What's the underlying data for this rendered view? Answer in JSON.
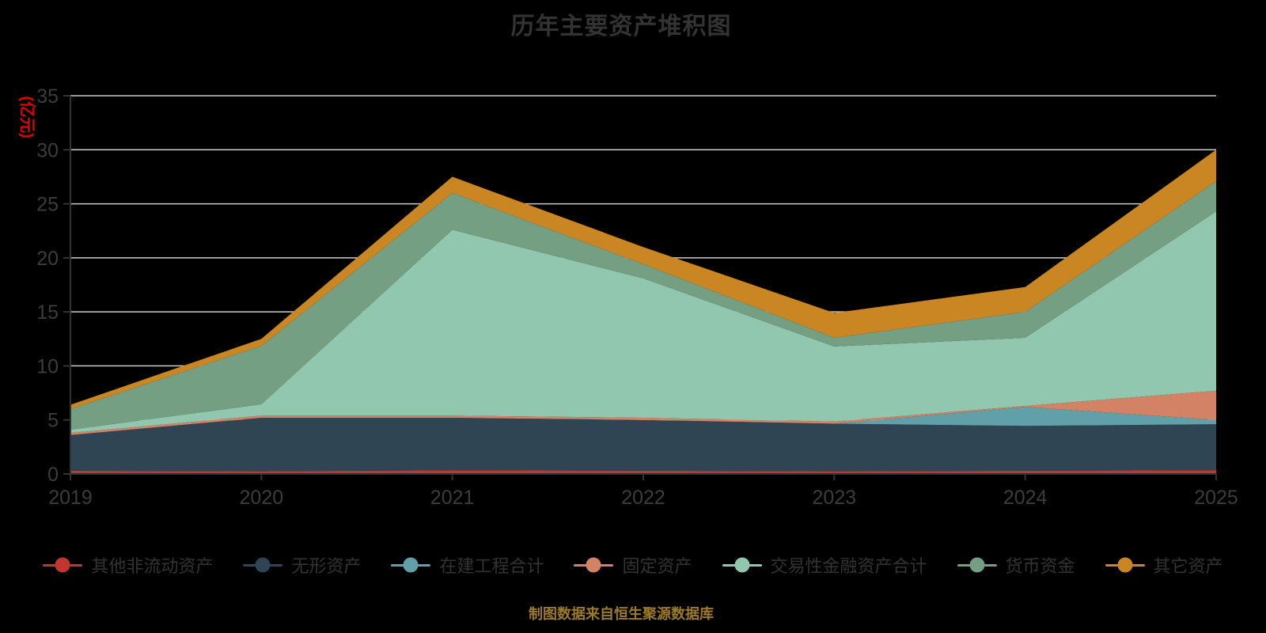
{
  "title": "历年主要资产堆积图",
  "y_axis_name": "(亿元)",
  "caption": "制图数据来自恒生聚源数据库",
  "colors": {
    "background": "#000000",
    "title_text": "#333333",
    "axis_line": "#333333",
    "axis_label": "#3c3c3c",
    "gridline": "#cccccc",
    "y_axis_name_text": "#e00000",
    "legend_text": "#333333",
    "caption_text": "#9c7a28"
  },
  "chart_data": {
    "type": "area",
    "stacked": true,
    "title": "历年主要资产堆积图",
    "ylabel": "(亿元)",
    "xlabel": "",
    "grid": "horizontal-only",
    "legend_position": "bottom",
    "ylim": [
      0,
      35
    ],
    "y_ticks": [
      0,
      5,
      10,
      15,
      20,
      25,
      30,
      35
    ],
    "categories": [
      "2019",
      "2020",
      "2021",
      "2022",
      "2023",
      "2024",
      "2025"
    ],
    "series": [
      {
        "id": "qita-feiliudong-zichan",
        "name": "其他非流动资产",
        "color": "#c23531",
        "values": [
          0.3,
          0.25,
          0.35,
          0.3,
          0.25,
          0.3,
          0.35
        ]
      },
      {
        "id": "wuxing-zichan",
        "name": "无形资产",
        "color": "#2f4554",
        "values": [
          3.3,
          4.95,
          4.85,
          4.7,
          4.4,
          4.15,
          4.25
        ]
      },
      {
        "id": "zaijian-gongcheng-heji",
        "name": "在建工程合计",
        "color": "#61a0a8",
        "values": [
          0,
          0,
          0,
          0,
          0,
          1.75,
          0.4
        ]
      },
      {
        "id": "guding-zichan",
        "name": "固定资产",
        "color": "#d48265",
        "values": [
          0.2,
          0.2,
          0.2,
          0.2,
          0.2,
          0.1,
          2.7
        ]
      },
      {
        "id": "jiaoyixing-jinrong-zichan-heji",
        "name": "交易性金融资产合计",
        "color": "#91c7ae",
        "values": [
          0.3,
          1.05,
          17.2,
          12.9,
          6.95,
          6.3,
          16.6
        ]
      },
      {
        "id": "huobi-zijin",
        "name": "货币资金",
        "color": "#749f83",
        "values": [
          1.9,
          5.4,
          3.4,
          1.3,
          0.8,
          2.4,
          2.8
        ]
      },
      {
        "id": "qita-zichan",
        "name": "其它资产",
        "color": "#ca8622",
        "values": [
          0.4,
          0.65,
          1.5,
          1.6,
          2.3,
          2.3,
          2.9
        ]
      }
    ],
    "stack_totals": [
      6.4,
      12.5,
      27.5,
      21.0,
      14.9,
      17.3,
      30.0
    ]
  }
}
